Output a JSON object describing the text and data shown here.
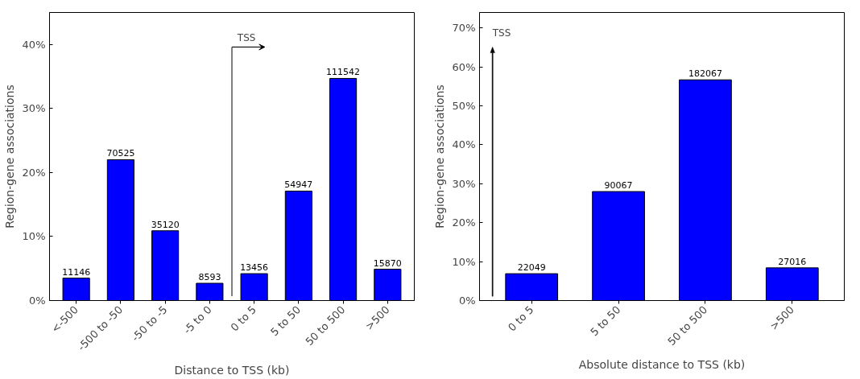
{
  "chart_data": [
    {
      "type": "bar",
      "xlabel": "Distance to TSS (kb)",
      "ylabel": "Region-gene associations",
      "categories": [
        "<-500",
        "-500 to -50",
        "-50 to -5",
        "-5 to 0",
        "0 to 5",
        "5 to 50",
        "50 to 500",
        ">500"
      ],
      "values": [
        3.5,
        22.0,
        10.9,
        2.7,
        4.2,
        17.1,
        34.7,
        4.9
      ],
      "annotations": [
        "TSS",
        {
          "text": "11146",
          "x": "<-500",
          "y": 3.5
        },
        {
          "text": "70525",
          "x": "-500 to -50",
          "y": 22.0
        },
        {
          "text": "35120",
          "x": "-50 to -5",
          "y": 10.9
        },
        {
          "text": "8593",
          "x": "-5 to 0",
          "y": 2.7
        },
        {
          "text": "13456",
          "x": "0 to 5",
          "y": 4.2
        },
        {
          "text": "54947",
          "x": "5 to 50",
          "y": 17.1
        },
        {
          "text": "111542",
          "x": "50 to 500",
          "y": 34.7
        },
        {
          "text": "15870",
          "x": ">500",
          "y": 4.9
        }
      ],
      "color": "#0000ff",
      "ylim": [
        0,
        45
      ],
      "yticks": [
        {
          "value": 0,
          "label": "0%"
        },
        {
          "value": 10,
          "label": "10%"
        },
        {
          "value": 20,
          "label": "20%"
        },
        {
          "value": 30,
          "label": "30%"
        },
        {
          "value": 40,
          "label": "40%"
        }
      ],
      "grid": false
    },
    {
      "type": "bar",
      "xlabel": "Absolute distance to TSS (kb)",
      "ylabel": "Region-gene associations",
      "categories": [
        "0 to 5",
        "5 to 50",
        "50 to 500",
        ">500"
      ],
      "values": [
        6.9,
        28.0,
        56.7,
        8.4
      ],
      "annotations": [
        "TSS",
        {
          "text": "22049",
          "x": "0 to 5",
          "y": 6.9
        },
        {
          "text": "90067",
          "x": "5 to 50",
          "y": 28.0
        },
        {
          "text": "182067",
          "x": "50 to 500",
          "y": 56.7
        },
        {
          "text": "27016",
          "x": ">500",
          "y": 8.4
        }
      ],
      "color": "#0000ff",
      "ylim": [
        0,
        74
      ],
      "yticks": [
        {
          "value": 0,
          "label": "0%"
        },
        {
          "value": 10,
          "label": "10%"
        },
        {
          "value": 20,
          "label": "20%"
        },
        {
          "value": 30,
          "label": "30%"
        },
        {
          "value": 40,
          "label": "40%"
        },
        {
          "value": 50,
          "label": "50%"
        },
        {
          "value": 60,
          "label": "60%"
        },
        {
          "value": 70,
          "label": "70%"
        }
      ],
      "grid": false
    }
  ]
}
